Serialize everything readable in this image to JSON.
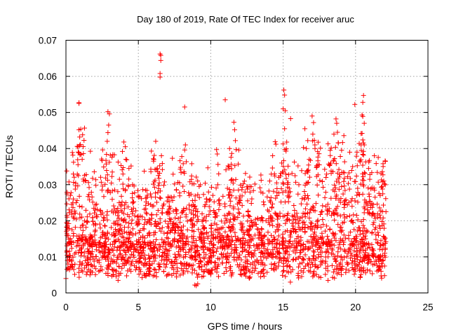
{
  "chart_data": {
    "type": "scatter",
    "title": "Day 180 of 2019, Rate Of TEC Index for receiver aruc",
    "xlabel": "GPS time / hours",
    "ylabel": "ROTI / TECUs",
    "xlim": [
      0,
      25
    ],
    "ylim": [
      0,
      0.07
    ],
    "x_ticks": [
      "0",
      "5",
      "10",
      "15",
      "20",
      "25"
    ],
    "y_ticks": [
      "0",
      "0.01",
      "0.02",
      "0.03",
      "0.04",
      "0.05",
      "0.06",
      "0.07"
    ],
    "grid": true,
    "legend": "none",
    "marker": "plus",
    "series_color": "#ff0000",
    "x_range_of_data": [
      0,
      22.1
    ],
    "series": [
      {
        "points": [
          [
            0.9,
            0.0527
          ],
          [
            0.9,
            0.0525
          ],
          [
            0.9,
            0.0452
          ],
          [
            0.95,
            0.0432
          ],
          [
            0.9,
            0.0388
          ],
          [
            1.4,
            0.0328
          ],
          [
            1.6,
            0.0292
          ],
          [
            1.8,
            0.0266
          ],
          [
            2.9,
            0.0502
          ],
          [
            3.0,
            0.0496
          ],
          [
            2.95,
            0.0465
          ],
          [
            2.9,
            0.0444
          ],
          [
            2.85,
            0.042
          ],
          [
            2.8,
            0.0384
          ],
          [
            3.0,
            0.0362
          ],
          [
            3.2,
            0.0335
          ],
          [
            2.7,
            0.0301
          ],
          [
            4.0,
            0.0418
          ],
          [
            4.1,
            0.0405
          ],
          [
            4.2,
            0.0369
          ],
          [
            4.35,
            0.0345
          ],
          [
            3.9,
            0.0392
          ],
          [
            4.6,
            0.03
          ],
          [
            5.9,
            0.0393
          ],
          [
            6.1,
            0.0381
          ],
          [
            6.2,
            0.042
          ],
          [
            6.15,
            0.0342
          ],
          [
            6.05,
            0.0365
          ],
          [
            6.5,
            0.0662
          ],
          [
            6.55,
            0.0658
          ],
          [
            6.55,
            0.0644
          ],
          [
            6.5,
            0.0608
          ],
          [
            6.5,
            0.0598
          ],
          [
            7.35,
            0.0373
          ],
          [
            7.4,
            0.0329
          ],
          [
            7.5,
            0.0302
          ],
          [
            8.2,
            0.0515
          ],
          [
            8.25,
            0.041
          ],
          [
            8.2,
            0.0396
          ],
          [
            8.1,
            0.0358
          ],
          [
            8.15,
            0.0336
          ],
          [
            9.0,
            0.0321
          ],
          [
            9.2,
            0.0295
          ],
          [
            9.5,
            0.0273
          ],
          [
            10.4,
            0.0397
          ],
          [
            10.45,
            0.0385
          ],
          [
            10.5,
            0.0356
          ],
          [
            10.55,
            0.033
          ],
          [
            11.0,
            0.0535
          ],
          [
            11.3,
            0.04
          ],
          [
            11.4,
            0.0376
          ],
          [
            11.2,
            0.0352
          ],
          [
            11.05,
            0.0341
          ],
          [
            11.6,
            0.0473
          ],
          [
            11.65,
            0.0452
          ],
          [
            11.7,
            0.0422
          ],
          [
            11.75,
            0.0397
          ],
          [
            11.9,
            0.0357
          ],
          [
            12.4,
            0.0331
          ],
          [
            12.7,
            0.0295
          ],
          [
            13.4,
            0.0291
          ],
          [
            13.9,
            0.0266
          ],
          [
            14.45,
            0.0419
          ],
          [
            14.5,
            0.0412
          ],
          [
            14.4,
            0.033
          ],
          [
            14.55,
            0.0305
          ],
          [
            15.05,
            0.0562
          ],
          [
            15.1,
            0.0548
          ],
          [
            15.0,
            0.051
          ],
          [
            15.15,
            0.0505
          ],
          [
            15.1,
            0.0455
          ],
          [
            15.2,
            0.0393
          ],
          [
            14.9,
            0.036
          ],
          [
            14.95,
            0.0335
          ],
          [
            16.5,
            0.0455
          ],
          [
            16.7,
            0.0422
          ],
          [
            16.6,
            0.04
          ],
          [
            16.8,
            0.037
          ],
          [
            17.0,
            0.049
          ],
          [
            17.1,
            0.0472
          ],
          [
            17.05,
            0.044
          ],
          [
            17.15,
            0.0423
          ],
          [
            17.2,
            0.04
          ],
          [
            17.4,
            0.0366
          ],
          [
            17.3,
            0.0347
          ],
          [
            17.7,
            0.0309
          ],
          [
            18.1,
            0.0413
          ],
          [
            18.25,
            0.0395
          ],
          [
            18.5,
            0.0368
          ],
          [
            18.2,
            0.0353
          ],
          [
            18.65,
            0.0482
          ],
          [
            18.7,
            0.047
          ],
          [
            18.75,
            0.0445
          ],
          [
            18.8,
            0.0416
          ],
          [
            18.95,
            0.0378
          ],
          [
            18.85,
            0.0342
          ],
          [
            19.6,
            0.039
          ],
          [
            19.8,
            0.035
          ],
          [
            19.45,
            0.0322
          ],
          [
            19.95,
            0.0522
          ],
          [
            20.1,
            0.039
          ],
          [
            20.3,
            0.0366
          ],
          [
            20.55,
            0.0547
          ],
          [
            20.5,
            0.0528
          ],
          [
            20.45,
            0.0493
          ],
          [
            20.5,
            0.0489
          ],
          [
            20.6,
            0.047
          ],
          [
            20.45,
            0.0442
          ],
          [
            20.5,
            0.0424
          ],
          [
            20.6,
            0.041
          ],
          [
            20.55,
            0.0382
          ],
          [
            20.7,
            0.0363
          ],
          [
            20.9,
            0.0345
          ],
          [
            21.3,
            0.038
          ],
          [
            21.5,
            0.0334
          ],
          [
            21.9,
            0.0358
          ],
          [
            21.85,
            0.0336
          ],
          [
            21.95,
            0.031
          ],
          [
            22.0,
            0.0302
          ],
          [
            21.7,
            0.027
          ],
          [
            0.0,
            0.004
          ],
          [
            0.05,
            0.0195
          ],
          [
            0.08,
            0.021
          ],
          [
            0.1,
            0.018
          ],
          [
            3.6,
            0.0035
          ],
          [
            8.9,
            0.0022
          ],
          [
            9.0,
            0.002
          ],
          [
            9.1,
            0.0025
          ],
          [
            15.5,
            0.003
          ],
          [
            18.1,
            0.0035
          ],
          [
            21.8,
            0.0041
          ],
          [
            22.0,
            0.0048
          ],
          [
            22.05,
            0.0152
          ],
          [
            22.1,
            0.0225
          ]
        ]
      }
    ]
  }
}
